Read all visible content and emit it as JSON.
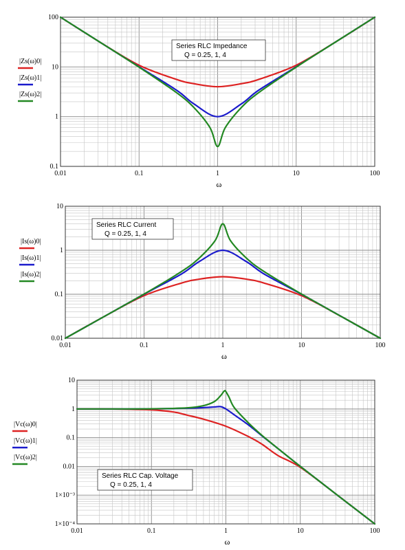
{
  "chart_data": [
    {
      "type": "line",
      "x_scale": "log",
      "y_scale": "log",
      "xlim": [
        0.01,
        100
      ],
      "ylim": [
        0.1,
        100
      ],
      "xlabel": "ω",
      "ylabel": "",
      "x_ticks": [
        "0.01",
        "0.1",
        "1",
        "10",
        "100"
      ],
      "y_ticks": [
        "0.1",
        "1",
        "10",
        "100"
      ],
      "grid": true,
      "annotation": [
        "Series RLC Impedance",
        "Q = 0.25, 1, 4"
      ],
      "legend_position": "left",
      "series": [
        {
          "name": "|Zs(ω)0|",
          "color": "#dd2222",
          "x": [
            0.01,
            0.03,
            0.1,
            0.3,
            0.5,
            1,
            2,
            3.33,
            10,
            33.3,
            100
          ],
          "y": [
            100,
            33.3,
            10.8,
            5.6,
            4.6,
            4.0,
            4.6,
            5.6,
            10.8,
            33.3,
            100
          ]
        },
        {
          "name": "|Zs(ω)1|",
          "color": "#1a1acc",
          "x": [
            0.01,
            0.03,
            0.1,
            0.3,
            0.5,
            1,
            2,
            3.33,
            10,
            33.3,
            100
          ],
          "y": [
            100,
            33.3,
            10.05,
            3.4,
            1.8,
            1.0,
            1.8,
            3.4,
            10.05,
            33.3,
            100
          ]
        },
        {
          "name": "|Zs(ω)2|",
          "color": "#228822",
          "x": [
            0.01,
            0.03,
            0.1,
            0.3,
            0.5,
            0.8,
            1,
            1.25,
            2,
            3.33,
            10,
            33.3,
            100
          ],
          "y": [
            100,
            33.3,
            9.9,
            3.04,
            1.52,
            0.6,
            0.25,
            0.6,
            1.52,
            3.04,
            9.9,
            33.3,
            100
          ]
        }
      ]
    },
    {
      "type": "line",
      "x_scale": "log",
      "y_scale": "log",
      "xlim": [
        0.01,
        100
      ],
      "ylim": [
        0.01,
        10
      ],
      "xlabel": "ω",
      "ylabel": "",
      "x_ticks": [
        "0.01",
        "0.1",
        "1",
        "10",
        "100"
      ],
      "y_ticks": [
        "0.01",
        "0.1",
        "1",
        "10"
      ],
      "grid": true,
      "annotation": [
        "Series RLC Current",
        "Q = 0.25, 1, 4"
      ],
      "legend_position": "left",
      "series": [
        {
          "name": "|Is(ω)0|",
          "color": "#dd2222",
          "x": [
            0.01,
            0.03,
            0.1,
            0.3,
            0.5,
            1,
            2,
            3.33,
            10,
            33.3,
            100
          ],
          "y": [
            0.01,
            0.03,
            0.093,
            0.18,
            0.22,
            0.25,
            0.22,
            0.18,
            0.093,
            0.03,
            0.01
          ]
        },
        {
          "name": "|Is(ω)1|",
          "color": "#1a1acc",
          "x": [
            0.01,
            0.03,
            0.1,
            0.3,
            0.5,
            1,
            2,
            3.33,
            10,
            33.3,
            100
          ],
          "y": [
            0.01,
            0.03,
            0.1,
            0.29,
            0.55,
            1.0,
            0.55,
            0.29,
            0.1,
            0.03,
            0.01
          ]
        },
        {
          "name": "|Is(ω)2|",
          "color": "#228822",
          "x": [
            0.01,
            0.03,
            0.1,
            0.3,
            0.5,
            0.8,
            1,
            1.25,
            2,
            3.33,
            10,
            33.3,
            100
          ],
          "y": [
            0.01,
            0.03,
            0.101,
            0.33,
            0.66,
            1.66,
            4.0,
            1.66,
            0.66,
            0.33,
            0.101,
            0.03,
            0.01
          ]
        }
      ]
    },
    {
      "type": "line",
      "x_scale": "log",
      "y_scale": "log",
      "xlim": [
        0.01,
        100
      ],
      "ylim": [
        0.0001,
        10
      ],
      "xlabel": "ω",
      "ylabel": "",
      "x_ticks": [
        "0.01",
        "0.1",
        "1",
        "10",
        "100"
      ],
      "y_ticks": [
        "1×10⁻⁴",
        "1×10⁻³",
        "0.01",
        "0.1",
        "1",
        "10"
      ],
      "grid": true,
      "annotation": [
        "Series RLC Cap. Voltage",
        "Q = 0.25, 1, 4"
      ],
      "legend_position": "left",
      "series": [
        {
          "name": "|Vc(ω)0|",
          "color": "#dd2222",
          "x": [
            0.01,
            0.03,
            0.1,
            0.2,
            0.3,
            0.5,
            1,
            2,
            3,
            5,
            10,
            30,
            100
          ],
          "y": [
            1.0,
            0.998,
            0.93,
            0.78,
            0.61,
            0.44,
            0.25,
            0.11,
            0.061,
            0.024,
            0.0093,
            0.0011,
            0.0001
          ]
        },
        {
          "name": "|Vc(ω)1|",
          "color": "#1a1acc",
          "x": [
            0.01,
            0.03,
            0.1,
            0.3,
            0.5,
            0.7,
            0.85,
            1,
            1.3,
            2,
            3,
            5,
            10,
            30,
            100
          ],
          "y": [
            1.0,
            1.0,
            1.005,
            1.06,
            1.11,
            1.17,
            1.2,
            1.0,
            0.62,
            0.28,
            0.12,
            0.042,
            0.01,
            0.0011,
            0.0001
          ]
        },
        {
          "name": "|Vc(ω)2|",
          "color": "#228822",
          "x": [
            0.01,
            0.03,
            0.1,
            0.3,
            0.5,
            0.7,
            0.85,
            0.95,
            1,
            1.1,
            1.3,
            2,
            3,
            5,
            10,
            30,
            100
          ],
          "y": [
            1.0,
            1.0,
            1.01,
            1.09,
            1.3,
            1.8,
            2.9,
            4.2,
            4.0,
            2.6,
            1.1,
            0.33,
            0.125,
            0.042,
            0.01,
            0.0011,
            0.0001
          ]
        }
      ]
    }
  ]
}
